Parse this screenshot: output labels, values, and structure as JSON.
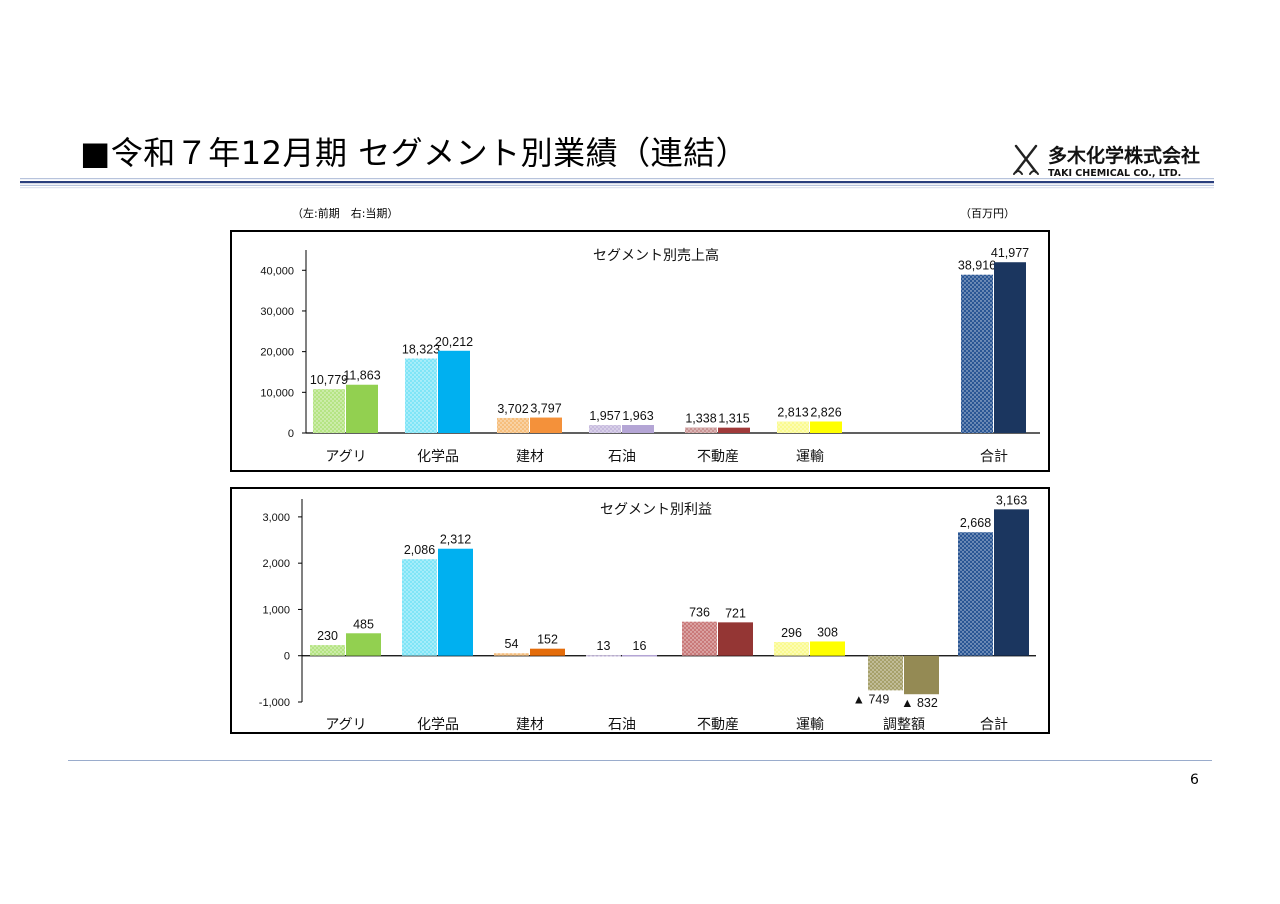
{
  "header": {
    "title": "■令和７年12月期 セグメント別業績（連結）",
    "company_name_jp": "多木化学株式会社",
    "company_name_en": "TAKI CHEMICAL CO., LTD."
  },
  "notes": {
    "left": "（左:前期　右:当期）",
    "unit": "（百万円）"
  },
  "page_number": "6",
  "colors": {
    "total_prev": "#2a5694",
    "total_curr": "#1b365f",
    "rule": "#2a3f7e"
  },
  "chart_data": [
    {
      "type": "bar",
      "title": "セグメント別売上高",
      "categories": [
        "アグリ",
        "化学品",
        "建材",
        "石油",
        "不動産",
        "運輸",
        "",
        "合計"
      ],
      "series": [
        {
          "values": [
            10779,
            18323,
            3702,
            1957,
            1338,
            2813,
            null,
            38916
          ]
        },
        {
          "values": [
            11863,
            20212,
            3797,
            1963,
            1315,
            2826,
            null,
            41977
          ]
        }
      ],
      "value_labels": [
        [
          "10,779",
          "18,323",
          "3,702",
          "1,957",
          "1,338",
          "2,813",
          "",
          "38,916"
        ],
        [
          "11,863",
          "20,212",
          "3,797",
          "1,963",
          "1,315",
          "2,826",
          "",
          "41,977"
        ]
      ],
      "yticks": [
        "0",
        "10,000",
        "20,000",
        "30,000",
        "40,000"
      ],
      "ytick_values": [
        0,
        10000,
        20000,
        30000,
        40000
      ],
      "ylim": [
        0,
        44000
      ],
      "grid": false,
      "colors": [
        [
          "#b5e483",
          "#92d050"
        ],
        [
          "#7fe5f7",
          "#00b0f0"
        ],
        [
          "#f6be7c",
          "#f4913a"
        ],
        [
          "#c7bbde",
          "#b4a5d5"
        ],
        [
          "#c99595",
          "#a03a3a"
        ],
        [
          "#fafa90",
          "#ffff00"
        ],
        [
          "#ffffff",
          "#ffffff"
        ],
        [
          "#2a5694",
          "#1b365f"
        ]
      ]
    },
    {
      "type": "bar",
      "title": "セグメント別利益",
      "categories": [
        "アグリ",
        "化学品",
        "建材",
        "石油",
        "不動産",
        "運輸",
        "調整額",
        "合計"
      ],
      "series": [
        {
          "values": [
            230,
            2086,
            54,
            13,
            736,
            296,
            -749,
            2668
          ]
        },
        {
          "values": [
            485,
            2312,
            152,
            16,
            721,
            308,
            -832,
            3163
          ]
        }
      ],
      "value_labels": [
        [
          "230",
          "2,086",
          "54",
          "13",
          "736",
          "296",
          "▲ 749",
          "2,668"
        ],
        [
          "485",
          "2,312",
          "152",
          "16",
          "721",
          "308",
          "▲ 832",
          "3,163"
        ]
      ],
      "yticks": [
        "-1,000",
        "0",
        "1,000",
        "2,000",
        "3,000"
      ],
      "ytick_values": [
        -1000,
        0,
        1000,
        2000,
        3000
      ],
      "ylim": [
        -1000,
        3300
      ],
      "grid": false,
      "colors": [
        [
          "#b5e483",
          "#92d050"
        ],
        [
          "#7fe5f7",
          "#00b0f0"
        ],
        [
          "#f6be7c",
          "#e46c0a"
        ],
        [
          "#c7bbde",
          "#b4a5d5"
        ],
        [
          "#c97979",
          "#943634"
        ],
        [
          "#fafa90",
          "#ffff00"
        ],
        [
          "#a6a06a",
          "#948a54"
        ],
        [
          "#2a5694",
          "#1b365f"
        ]
      ]
    }
  ]
}
